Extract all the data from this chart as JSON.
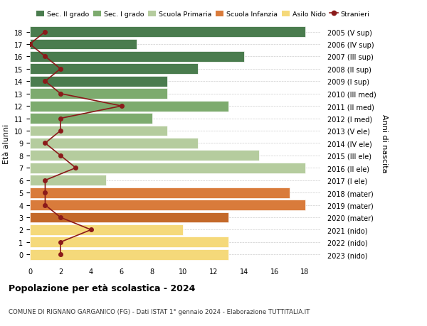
{
  "ages": [
    0,
    1,
    2,
    3,
    4,
    5,
    6,
    7,
    8,
    9,
    10,
    11,
    12,
    13,
    14,
    15,
    16,
    17,
    18
  ],
  "years": [
    "2023 (nido)",
    "2022 (nido)",
    "2021 (nido)",
    "2020 (mater)",
    "2019 (mater)",
    "2018 (mater)",
    "2017 (I ele)",
    "2016 (II ele)",
    "2015 (III ele)",
    "2014 (IV ele)",
    "2013 (V ele)",
    "2012 (I med)",
    "2011 (II med)",
    "2010 (III med)",
    "2009 (I sup)",
    "2008 (II sup)",
    "2007 (III sup)",
    "2006 (IV sup)",
    "2005 (V sup)"
  ],
  "bar_values": [
    13,
    13,
    10,
    13,
    18,
    17,
    5,
    18,
    15,
    11,
    9,
    8,
    13,
    9,
    9,
    11,
    14,
    7,
    18
  ],
  "bar_colors": [
    "#f5d97a",
    "#f5d97a",
    "#f5d97a",
    "#c4692a",
    "#d97b3b",
    "#d97b3b",
    "#b5cc9e",
    "#b5cc9e",
    "#b5cc9e",
    "#b5cc9e",
    "#b5cc9e",
    "#7dab6e",
    "#7dab6e",
    "#7dab6e",
    "#4a7c4e",
    "#4a7c4e",
    "#4a7c4e",
    "#4a7c4e",
    "#4a7c4e"
  ],
  "stranieri_values": [
    2,
    2,
    4,
    2,
    1,
    1,
    1,
    3,
    2,
    1,
    2,
    2,
    6,
    2,
    1,
    2,
    1,
    0,
    1
  ],
  "stranieri_color": "#8b1a1a",
  "legend_labels": [
    "Sec. II grado",
    "Sec. I grado",
    "Scuola Primaria",
    "Scuola Infanzia",
    "Asilo Nido",
    "Stranieri"
  ],
  "legend_colors": [
    "#4a7c4e",
    "#7dab6e",
    "#b5cc9e",
    "#d97b3b",
    "#f5d97a",
    "#8b1a1a"
  ],
  "ylabel_left": "Età alunni",
  "ylabel_right": "Anni di nascita",
  "title": "Popolazione per età scolastica - 2024",
  "subtitle": "COMUNE DI RIGNANO GARGANICO (FG) - Dati ISTAT 1° gennaio 2024 - Elaborazione TUTTITALIA.IT",
  "xlim": [
    0,
    19
  ],
  "background_color": "#ffffff",
  "grid_color": "#cccccc"
}
